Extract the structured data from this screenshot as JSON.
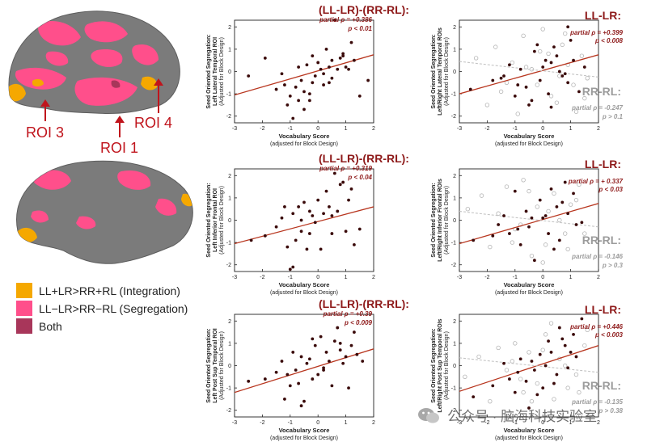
{
  "brain": {
    "roi_labels": [
      "ROI 3",
      "ROI 1",
      "ROI 4"
    ],
    "colors": {
      "integration": "#F5A800",
      "segregation": "#FF4F8B",
      "both": "#A8365A",
      "cortex": "#7B7B7B"
    }
  },
  "legend": {
    "items": [
      {
        "label": "LL+LR>RR+RL (Integration)",
        "color": "#F5A800"
      },
      {
        "label": "LL−LR>RR−RL (Segregation)",
        "color": "#FF4F8B"
      },
      {
        "label": "Both",
        "color": "#A8365A"
      }
    ]
  },
  "watermark": {
    "text": "公众号 · 脑海科技实验室"
  },
  "chart_data": [
    {
      "type": "scatter",
      "title": "(LL-LR)-(RR-RL):",
      "stats": [
        "partial ρ = +0.386",
        "p < 0.01"
      ],
      "xlabel": "Vocabulary Score",
      "xlabel2": "(adjusted for Block Design)",
      "ylabel": [
        "Seed Oriented Segregation:",
        "Left Lateral Temporal ROI",
        "(Adjusted for Block Design)"
      ],
      "xlim": [
        -3,
        2
      ],
      "ylim": [
        -2.3,
        2.3
      ],
      "xticks": [
        "-3",
        "-2",
        "-1",
        "0",
        "1",
        "2"
      ],
      "yticks": [
        "-2",
        "-1",
        "0",
        "1",
        "2"
      ],
      "grid": false,
      "series": [
        {
          "style": "filled",
          "x": [
            -2.5,
            -1.9,
            -1.5,
            -1.3,
            -1.2,
            -1.0,
            -0.9,
            -0.8,
            -0.7,
            -0.6,
            -0.5,
            -0.5,
            -0.4,
            -0.3,
            -0.2,
            -0.2,
            -0.1,
            0.0,
            0.1,
            0.2,
            0.3,
            0.4,
            0.5,
            0.5,
            0.6,
            0.7,
            0.8,
            0.9,
            1.0,
            1.1,
            1.2,
            1.3,
            1.5,
            1.8,
            -1.1,
            -0.3,
            0.2,
            0.9,
            -0.7,
            0.4
          ],
          "y": [
            -0.2,
            0.6,
            -0.8,
            -0.1,
            -0.6,
            -1.1,
            -2.1,
            -0.7,
            0.2,
            -0.4,
            -0.9,
            -1.7,
            0.3,
            -1.3,
            -0.5,
            0.7,
            -0.2,
            0.4,
            0.1,
            -0.6,
            1.0,
            -0.5,
            0.5,
            -0.3,
            2.3,
            0.1,
            0.6,
            0.7,
            0.2,
            0.1,
            1.3,
            0.5,
            -1.1,
            -0.4,
            -1.5,
            -1.0,
            -0.1,
            0.8,
            -1.3,
            0.2
          ]
        }
      ],
      "fit": [
        {
          "x": [
            -3,
            2
          ],
          "y": [
            -1.05,
            0.75
          ],
          "style": "solid"
        }
      ]
    },
    {
      "type": "scatter",
      "title": "LL-LR:",
      "stats": [
        "partial ρ = +0.399",
        "p < 0.008"
      ],
      "title2": "RR-RL:",
      "stats2": [
        "partial ρ = -0.247",
        "p > 0.1"
      ],
      "xlabel": "Vocabulary Score",
      "xlabel2": "(adjusted for Block Design)",
      "ylabel": [
        "Seed Oriented Segregation:",
        "Left/Right Lateral Temporal ROIs",
        "(Adjusted for Block Design)"
      ],
      "xlim": [
        -3,
        2
      ],
      "ylim": [
        -2.3,
        2.3
      ],
      "xticks": [
        "-3",
        "-2",
        "-1",
        "0",
        "1",
        "2"
      ],
      "yticks": [
        "-2",
        "-1",
        "0",
        "1",
        "2"
      ],
      "grid": false,
      "series": [
        {
          "style": "filled",
          "x": [
            -2.6,
            -1.8,
            -1.4,
            -1.2,
            -1.0,
            -0.8,
            -0.6,
            -0.5,
            -0.3,
            -0.1,
            0.0,
            0.2,
            0.3,
            0.4,
            0.6,
            0.7,
            0.9,
            1.0,
            1.1,
            1.3,
            -0.9,
            -0.4,
            0.5,
            0.8,
            -0.2,
            0.1,
            1.5,
            -1.5,
            0.3,
            0.9
          ],
          "y": [
            -0.8,
            -0.4,
            -0.2,
            0.3,
            -1.1,
            0.1,
            -0.7,
            -1.5,
            0.9,
            -0.4,
            0.2,
            -1.0,
            0.4,
            1.1,
            0.0,
            -0.2,
            2.0,
            1.4,
            0.5,
            -0.9,
            -0.6,
            -1.3,
            0.7,
            -0.1,
            1.2,
            0.5,
            0.2,
            -0.3,
            -1.6,
            -0.5
          ]
        },
        {
          "style": "hollow",
          "x": [
            -2.4,
            -2.0,
            -1.7,
            -1.5,
            -1.1,
            -0.9,
            -0.7,
            -0.4,
            -0.2,
            0.0,
            0.2,
            0.5,
            0.7,
            0.9,
            1.2,
            1.4,
            1.6,
            -1.3,
            -0.6,
            0.3,
            0.8,
            1.1,
            -0.1,
            0.6,
            1.5
          ],
          "y": [
            0.6,
            -1.5,
            1.1,
            -0.9,
            0.4,
            -1.9,
            1.6,
            0.1,
            -0.6,
            1.9,
            0.8,
            -1.4,
            1.2,
            0.3,
            -1.8,
            0.7,
            -0.3,
            -0.5,
            0.2,
            -1.1,
            1.7,
            -0.6,
            0.9,
            -0.2,
            -1.2
          ]
        }
      ],
      "fit": [
        {
          "x": [
            -3,
            2
          ],
          "y": [
            -1.0,
            0.75
          ],
          "style": "solid"
        },
        {
          "x": [
            -3,
            2
          ],
          "y": [
            0.45,
            -0.25
          ],
          "style": "dashed"
        }
      ]
    },
    {
      "type": "scatter",
      "title": "(LL-LR)-(RR-RL):",
      "stats": [
        "partial ρ = +0.319",
        "p < 0.04"
      ],
      "xlabel": "Vocabulary Score",
      "xlabel2": "(adjusted for Block Design)",
      "ylabel": [
        "Seed Oriented Segregation:",
        "Left Inferior Frontal ROI",
        "(Adjusted for Block Design)"
      ],
      "xlim": [
        -3,
        2
      ],
      "ylim": [
        -2.3,
        2.3
      ],
      "xticks": [
        "-3",
        "-2",
        "-1",
        "0",
        "1",
        "2"
      ],
      "yticks": [
        "-2",
        "-1",
        "0",
        "1",
        "2"
      ],
      "grid": false,
      "series": [
        {
          "style": "filled",
          "x": [
            -2.4,
            -1.9,
            -1.5,
            -1.3,
            -1.2,
            -1.1,
            -1.0,
            -0.9,
            -0.8,
            -0.7,
            -0.6,
            -0.5,
            -0.4,
            -0.3,
            -0.2,
            -0.1,
            0.0,
            0.1,
            0.2,
            0.3,
            0.4,
            0.5,
            0.6,
            0.7,
            0.8,
            0.9,
            1.0,
            1.1,
            1.3,
            1.5,
            -0.9,
            -0.3,
            0.5,
            1.2,
            -0.6
          ],
          "y": [
            -0.9,
            -0.7,
            -0.3,
            0.1,
            0.6,
            -1.2,
            -2.2,
            0.3,
            -0.9,
            0.6,
            -0.5,
            0.8,
            -1.3,
            0.4,
            0.2,
            -0.1,
            0.9,
            -1.3,
            0.3,
            1.3,
            0.6,
            -0.6,
            2.1,
            0.4,
            1.6,
            1.7,
            -0.5,
            0.9,
            -1.1,
            -0.4,
            -2.1,
            -0.6,
            0.2,
            1.4,
            0.0
          ]
        }
      ],
      "fit": [
        {
          "x": [
            -3,
            2
          ],
          "y": [
            -1.05,
            0.6
          ],
          "style": "solid"
        }
      ]
    },
    {
      "type": "scatter",
      "title": "LL-LR:",
      "stats": [
        "partial ρ = + 0.337",
        "p < 0.03"
      ],
      "title2": "RR-RL:",
      "stats2": [
        "partial ρ = -0.146",
        "p > 0.3"
      ],
      "xlabel": "Vocabulary Score",
      "xlabel2": "(adjusted for Block Design)",
      "ylabel": [
        "Seed Oriented Segregation:",
        "Left/Right Inferior Frontal ROIs",
        "(Adjusted for Block Design)"
      ],
      "xlim": [
        -3,
        2
      ],
      "ylim": [
        -2.3,
        2.3
      ],
      "xticks": [
        "-3",
        "-2",
        "-1",
        "0",
        "1",
        "2"
      ],
      "yticks": [
        "-2",
        "-1",
        "0",
        "1",
        "2"
      ],
      "grid": false,
      "series": [
        {
          "style": "filled",
          "x": [
            -2.5,
            -1.8,
            -1.4,
            -1.2,
            -1.0,
            -0.8,
            -0.6,
            -0.5,
            -0.3,
            -0.1,
            0.0,
            0.2,
            0.3,
            0.5,
            0.6,
            0.8,
            0.9,
            1.1,
            1.2,
            -0.9,
            -0.4,
            0.4,
            0.7,
            1.4,
            -1.6,
            0.1
          ],
          "y": [
            -0.9,
            -0.7,
            0.2,
            -0.6,
            1.3,
            -1.1,
            0.4,
            -0.3,
            -1.8,
            0.9,
            0.1,
            -0.6,
            1.4,
            0.6,
            -0.9,
            1.7,
            0.3,
            1.2,
            -0.2,
            -0.4,
            0.1,
            -1.3,
            0.8,
            -0.1,
            -0.2,
            0.2
          ]
        },
        {
          "style": "hollow",
          "x": [
            -2.7,
            -2.2,
            -1.9,
            -1.6,
            -1.3,
            -1.0,
            -0.7,
            -0.4,
            -0.2,
            0.1,
            0.4,
            0.6,
            0.9,
            1.2,
            1.5,
            -1.1,
            -0.5,
            0.2,
            0.8,
            1.3,
            0.0,
            -0.8,
            1.0
          ],
          "y": [
            0.5,
            1.1,
            -1.2,
            0.3,
            1.5,
            -0.4,
            1.8,
            -1.6,
            0.6,
            -1.1,
            1.2,
            0.0,
            -1.3,
            0.9,
            -0.6,
            -1.0,
            1.3,
            0.4,
            -0.6,
            1.6,
            -1.9,
            -0.2,
            0.7
          ]
        }
      ],
      "fit": [
        {
          "x": [
            -3,
            2
          ],
          "y": [
            -1.05,
            0.75
          ],
          "style": "solid"
        },
        {
          "x": [
            -3,
            2
          ],
          "y": [
            0.4,
            -0.3
          ],
          "style": "dashed"
        }
      ]
    },
    {
      "type": "scatter",
      "title": "(LL-LR)-(RR-RL):",
      "stats": [
        "partial ρ = +0.39",
        "p < 0.009"
      ],
      "xlabel": "Vocabulary Score",
      "xlabel2": "(adjusted for Block Design)",
      "ylabel": [
        "Seed Oriented Segregation:",
        "Left Post Sup Temporal ROI",
        "(Adjusted for Block Design)"
      ],
      "xlim": [
        -3,
        2
      ],
      "ylim": [
        -2.3,
        2.3
      ],
      "xticks": [
        "-3",
        "-2",
        "-1",
        "0",
        "1",
        "2"
      ],
      "yticks": [
        "-2",
        "-1",
        "0",
        "1",
        "2"
      ],
      "grid": false,
      "series": [
        {
          "style": "filled",
          "x": [
            -2.5,
            -1.9,
            -1.5,
            -1.3,
            -1.2,
            -1.1,
            -1.0,
            -0.9,
            -0.8,
            -0.7,
            -0.6,
            -0.5,
            -0.4,
            -0.3,
            -0.2,
            -0.1,
            0.0,
            0.1,
            0.2,
            0.3,
            0.4,
            0.5,
            0.6,
            0.7,
            0.8,
            0.9,
            1.0,
            1.1,
            1.2,
            1.4,
            1.6,
            -0.6,
            0.2,
            0.8,
            -0.2,
            1.3
          ],
          "y": [
            -0.7,
            -0.6,
            -0.3,
            0.2,
            -1.5,
            -0.4,
            -0.9,
            0.6,
            -0.2,
            -0.8,
            0.4,
            -1.6,
            0.1,
            0.3,
            -0.6,
            0.9,
            -0.4,
            1.3,
            -0.1,
            0.6,
            0.2,
            -0.9,
            1.1,
            1.7,
            0.7,
            0.1,
            0.4,
            -1.0,
            0.9,
            0.5,
            0.2,
            -1.8,
            -0.2,
            1.0,
            1.2,
            1.5
          ]
        }
      ],
      "fit": [
        {
          "x": [
            -3,
            2
          ],
          "y": [
            -1.2,
            0.75
          ],
          "style": "solid"
        }
      ]
    },
    {
      "type": "scatter",
      "title": "LL-LR:",
      "stats": [
        "partial ρ = +0.446",
        "p < 0.003"
      ],
      "title2": "RR-RL:",
      "stats2": [
        "partial ρ = -0.135",
        "p > 0.38"
      ],
      "xlabel": "Vocabulary Score",
      "xlabel2": "(adjusted for Block Design)",
      "ylabel": [
        "Seed Oriented Segregation:",
        "Left/Right Post Sup Temporal ROIs",
        "(Adjusted for Block Design)"
      ],
      "xlim": [
        -3,
        2
      ],
      "ylim": [
        -2.3,
        2.3
      ],
      "xticks": [
        "-3",
        "-2",
        "-1",
        "0",
        "1",
        "2"
      ],
      "yticks": [
        "-2",
        "-1",
        "0",
        "1",
        "2"
      ],
      "grid": false,
      "series": [
        {
          "style": "filled",
          "x": [
            -2.5,
            -1.8,
            -1.4,
            -1.2,
            -1.0,
            -0.8,
            -0.6,
            -0.5,
            -0.3,
            -0.1,
            0.0,
            0.2,
            0.3,
            0.5,
            0.6,
            0.8,
            0.9,
            1.1,
            1.2,
            1.4,
            -0.9,
            -0.4,
            0.4,
            0.7,
            -0.2,
            1.0,
            0.1
          ],
          "y": [
            -1.4,
            -0.9,
            0.1,
            -0.6,
            -1.2,
            0.3,
            -0.7,
            -1.9,
            -0.2,
            0.5,
            -1.0,
            1.1,
            0.6,
            -0.4,
            1.7,
            0.9,
            -0.1,
            1.4,
            0.4,
            2.1,
            -0.3,
            0.2,
            -0.8,
            1.2,
            -1.3,
            0.6,
            0.0
          ]
        },
        {
          "style": "hollow",
          "x": [
            -2.8,
            -2.3,
            -1.9,
            -1.6,
            -1.3,
            -1.0,
            -0.7,
            -0.5,
            -0.2,
            0.1,
            0.4,
            0.6,
            0.9,
            1.2,
            1.5,
            -1.1,
            -0.4,
            0.3,
            0.8,
            1.3,
            0.0,
            1.6,
            -0.8
          ],
          "y": [
            -0.5,
            0.4,
            -1.6,
            0.8,
            -0.2,
            1.0,
            -1.2,
            0.6,
            -0.8,
            1.4,
            -1.5,
            0.3,
            -1.0,
            -0.4,
            0.9,
            0.2,
            -1.6,
            1.9,
            0.0,
            -1.2,
            0.7,
            1.6,
            -0.6
          ]
        }
      ],
      "fit": [
        {
          "x": [
            -3,
            2
          ],
          "y": [
            -1.15,
            0.9
          ],
          "style": "solid"
        },
        {
          "x": [
            -3,
            2
          ],
          "y": [
            0.35,
            -0.3
          ],
          "style": "dashed"
        }
      ]
    }
  ]
}
